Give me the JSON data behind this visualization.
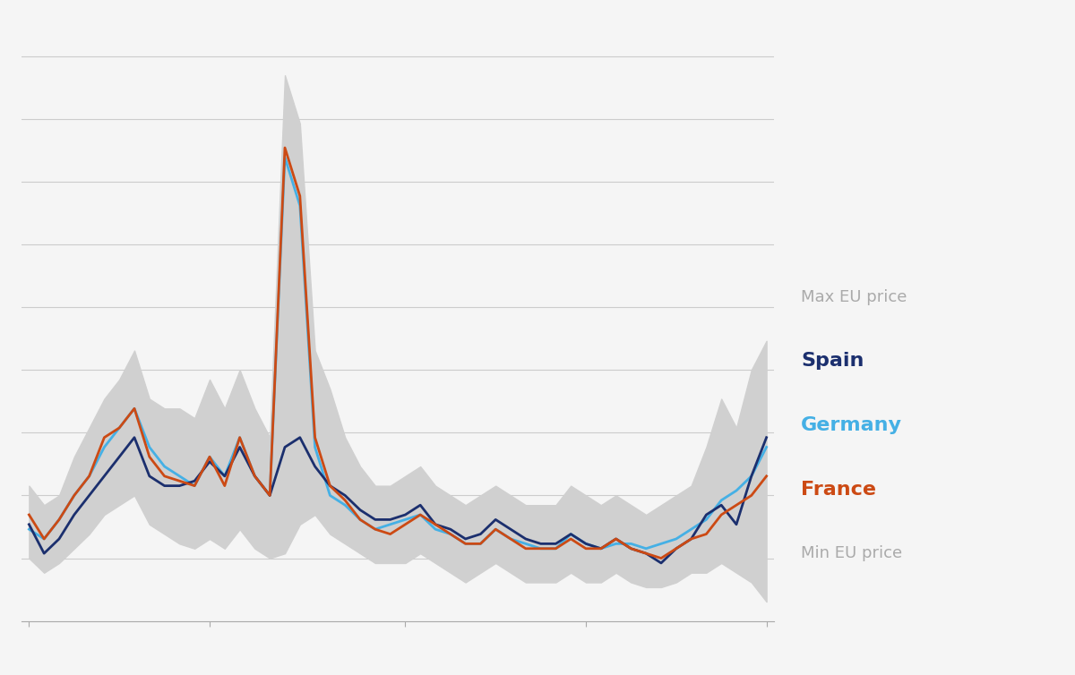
{
  "background_color": "#f5f5f5",
  "fill_color": "#d0d0d0",
  "spain_color": "#1b2f6e",
  "germany_color": "#45b0e5",
  "france_color": "#cc4a14",
  "gridline_color": "#cccccc",
  "linewidth": 2.0,
  "legend_items": [
    {
      "label": "Max EU price",
      "color": "#aaaaaa",
      "fontsize": 13,
      "bold": false
    },
    {
      "label": "Spain",
      "color": "#1b2f6e",
      "fontsize": 16,
      "bold": true
    },
    {
      "label": "Germany",
      "color": "#45b0e5",
      "fontsize": 16,
      "bold": true
    },
    {
      "label": "France",
      "color": "#cc4a14",
      "fontsize": 16,
      "bold": true
    },
    {
      "label": "Min EU price",
      "color": "#aaaaaa",
      "fontsize": 13,
      "bold": false
    }
  ],
  "spain": [
    12,
    6,
    9,
    14,
    18,
    22,
    26,
    30,
    22,
    20,
    20,
    21,
    25,
    22,
    28,
    22,
    18,
    28,
    30,
    24,
    20,
    18,
    15,
    13,
    13,
    14,
    16,
    12,
    11,
    9,
    10,
    13,
    11,
    9,
    8,
    8,
    10,
    8,
    7,
    9,
    7,
    6,
    4,
    7,
    9,
    14,
    16,
    12,
    22,
    30
  ],
  "germany": [
    11,
    9,
    13,
    18,
    22,
    28,
    32,
    36,
    28,
    24,
    22,
    20,
    26,
    22,
    30,
    22,
    18,
    88,
    78,
    28,
    18,
    16,
    13,
    11,
    12,
    13,
    14,
    11,
    10,
    8,
    8,
    11,
    9,
    8,
    7,
    7,
    10,
    8,
    7,
    8,
    8,
    7,
    8,
    9,
    11,
    13,
    17,
    19,
    22,
    28
  ],
  "france": [
    14,
    9,
    13,
    18,
    22,
    30,
    32,
    36,
    26,
    22,
    21,
    20,
    26,
    20,
    30,
    22,
    18,
    90,
    80,
    30,
    20,
    17,
    13,
    11,
    10,
    12,
    14,
    12,
    10,
    8,
    8,
    11,
    9,
    7,
    7,
    7,
    9,
    7,
    7,
    9,
    7,
    6,
    5,
    7,
    9,
    10,
    14,
    16,
    18,
    22
  ],
  "max_eu": [
    20,
    16,
    18,
    26,
    32,
    38,
    42,
    48,
    38,
    36,
    36,
    34,
    42,
    36,
    44,
    36,
    30,
    105,
    95,
    48,
    40,
    30,
    24,
    20,
    20,
    22,
    24,
    20,
    18,
    16,
    18,
    20,
    18,
    16,
    16,
    16,
    20,
    18,
    16,
    18,
    16,
    14,
    16,
    18,
    20,
    28,
    38,
    32,
    44,
    50
  ],
  "min_eu": [
    5,
    2,
    4,
    7,
    10,
    14,
    16,
    18,
    12,
    10,
    8,
    7,
    9,
    7,
    11,
    7,
    5,
    6,
    12,
    14,
    10,
    8,
    6,
    4,
    4,
    4,
    6,
    4,
    2,
    0,
    2,
    4,
    2,
    0,
    0,
    0,
    2,
    0,
    0,
    2,
    0,
    -1,
    -1,
    0,
    2,
    2,
    4,
    2,
    0,
    -4
  ]
}
